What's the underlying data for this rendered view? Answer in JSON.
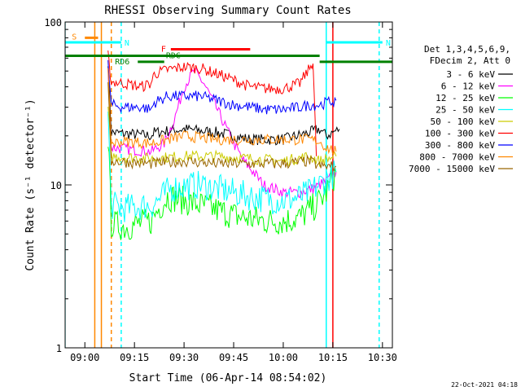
{
  "chart_data": {
    "type": "line",
    "title": "RHESSI Observing Summary Count Rates",
    "xlabel": "Start Time (06-Apr-14 08:54:02)",
    "ylabel": "Count Rate (s⁻¹ detector⁻¹)",
    "yscale": "log",
    "ylim": [
      1,
      100
    ],
    "xlim": [
      "08:54:02",
      "10:33:00"
    ],
    "x_ticks": [
      "09:00",
      "09:15",
      "09:30",
      "09:45",
      "10:00",
      "10:15",
      "10:30"
    ],
    "y_ticks": [
      "1",
      "10",
      "100"
    ],
    "grid": false,
    "legend_position": "right",
    "legend_header": [
      "Det 1,3,4,5,6,9,",
      "FDecim 2, Att 0"
    ],
    "series": [
      {
        "name": "3 - 6 keV",
        "color": "#000000",
        "x": [
          "09:07",
          "09:08",
          "09:20",
          "09:21",
          "09:30",
          "09:40",
          "09:50",
          "10:00",
          "10:08",
          "10:11",
          "10:13",
          "10:15",
          "10:17"
        ],
        "values": [
          58,
          21,
          20,
          21,
          22,
          21,
          19,
          19,
          21,
          22,
          20,
          21,
          22
        ]
      },
      {
        "name": "6 - 12 keV",
        "color": "#ff00ff",
        "x": [
          "09:07",
          "09:08",
          "09:20",
          "09:24",
          "09:27",
          "09:30",
          "09:33",
          "09:36",
          "09:39",
          "09:42",
          "09:45",
          "09:48",
          "09:51",
          "09:54",
          "09:57",
          "10:00",
          "10:05",
          "10:09",
          "10:13",
          "10:16"
        ],
        "values": [
          50,
          17,
          16,
          18,
          25,
          40,
          50,
          42,
          32,
          24,
          18,
          14,
          12,
          10,
          9.5,
          9,
          9,
          9.5,
          10.5,
          12
        ]
      },
      {
        "name": "12 - 25 keV",
        "color": "#00ff00",
        "x": [
          "09:07",
          "09:08",
          "09:12",
          "09:20",
          "09:22",
          "09:25",
          "09:30",
          "09:35",
          "09:40",
          "09:45",
          "09:50",
          "09:55",
          "10:00",
          "10:05",
          "10:10",
          "10:13",
          "10:16"
        ],
        "values": [
          20,
          5.8,
          5.5,
          6,
          7,
          8.5,
          8,
          7.5,
          7,
          6.5,
          6.2,
          6,
          6,
          6.3,
          7.5,
          9,
          12
        ]
      },
      {
        "name": "25 - 50 keV",
        "color": "#00ffff",
        "x": [
          "09:07",
          "09:08",
          "09:12",
          "09:20",
          "09:22",
          "09:26",
          "09:30",
          "09:35",
          "09:40",
          "09:45",
          "09:50",
          "09:55",
          "10:00",
          "10:05",
          "10:08",
          "10:12",
          "10:16"
        ],
        "values": [
          28,
          7.5,
          7.2,
          7.5,
          8,
          9.5,
          9.8,
          10,
          9.5,
          9,
          8.5,
          8.2,
          8,
          8.4,
          9,
          10.5,
          12
        ]
      },
      {
        "name": "50 - 100 keV",
        "color": "#cccc00",
        "x": [
          "09:07",
          "09:08",
          "09:20",
          "09:30",
          "09:40",
          "09:50",
          "10:00",
          "10:08",
          "10:11",
          "10:16"
        ],
        "values": [
          30,
          15,
          14.5,
          15,
          15,
          14.5,
          14,
          15,
          14,
          15
        ]
      },
      {
        "name": "100 - 300 keV",
        "color": "#ff0000",
        "x": [
          "09:07",
          "09:08",
          "09:12",
          "09:17",
          "09:20",
          "09:21",
          "09:25",
          "09:30",
          "09:35",
          "09:40",
          "09:45",
          "09:50",
          "09:55",
          "10:00",
          "10:05",
          "10:08",
          "10:09",
          "10:10"
        ],
        "values": [
          62,
          43,
          42,
          40,
          42,
          48,
          51,
          53,
          52,
          48,
          44,
          40,
          39,
          39,
          42,
          52,
          58,
          15
        ]
      },
      {
        "name": "300 - 800 keV",
        "color": "#0000ff",
        "x": [
          "09:07",
          "09:08",
          "09:12",
          "09:17",
          "09:20",
          "09:21",
          "09:25",
          "09:30",
          "09:35",
          "09:40",
          "09:45",
          "09:50",
          "09:55",
          "10:00",
          "10:05",
          "10:08",
          "10:11",
          "10:13",
          "10:16"
        ],
        "values": [
          55,
          31,
          30,
          30,
          29,
          32,
          35,
          35,
          35,
          33,
          31,
          30,
          29,
          29,
          30,
          31,
          31,
          32,
          33
        ]
      },
      {
        "name": "800 - 7000 keV",
        "color": "#ff8800",
        "x": [
          "09:07",
          "09:08",
          "09:12",
          "09:20",
          "09:25",
          "09:30",
          "09:35",
          "09:40",
          "09:50",
          "10:00",
          "10:08",
          "10:11",
          "10:13",
          "10:16"
        ],
        "values": [
          48,
          18,
          18.5,
          18,
          19,
          20,
          19.5,
          19,
          19,
          19,
          19,
          18.5,
          17,
          16
        ]
      },
      {
        "name": "7000 - 15000 keV",
        "color": "#996600",
        "x": [
          "09:07",
          "09:08",
          "09:20",
          "09:30",
          "09:40",
          "09:50",
          "10:00",
          "10:08",
          "10:11",
          "10:16"
        ],
        "values": [
          40,
          14,
          13.5,
          14,
          13.5,
          13.5,
          13.5,
          14,
          13,
          13
        ]
      }
    ],
    "flag_bars": [
      {
        "label": "S",
        "color": "#ff8800",
        "start": "09:00",
        "end": "09:04",
        "level": 80
      },
      {
        "label": "N",
        "color": "#00ffff",
        "start": "08:54",
        "end": "09:11",
        "level": 75
      },
      {
        "label": "N",
        "color": "#00ffff",
        "start": "10:13",
        "end": "10:30",
        "level": 75
      },
      {
        "label": "F",
        "color": "#ff0000",
        "start": "09:26",
        "end": "09:50",
        "level": 68
      },
      {
        "label": "RDC",
        "color": "#008000",
        "start": "08:54",
        "end": "10:11",
        "level": 62
      },
      {
        "label": "",
        "color": "#008000",
        "start": "10:11",
        "end": "10:33",
        "level": 57
      },
      {
        "label": "RD6",
        "color": "#008000",
        "start": "09:16",
        "end": "09:24",
        "level": 57
      }
    ],
    "markers": [
      {
        "time": "09:03",
        "color": "#ff8800",
        "style": "solid"
      },
      {
        "time": "09:05",
        "color": "#ff8800",
        "style": "solid"
      },
      {
        "time": "09:08",
        "color": "#ff8800",
        "style": "dashed"
      },
      {
        "time": "08:54",
        "color": "#00ffff",
        "style": "solid"
      },
      {
        "time": "09:11",
        "color": "#00ffff",
        "style": "dashed"
      },
      {
        "time": "10:13",
        "color": "#00ffff",
        "style": "solid"
      },
      {
        "time": "10:29",
        "color": "#00ffff",
        "style": "dashed"
      },
      {
        "time": "10:15",
        "color": "#ff0000",
        "style": "solid"
      }
    ],
    "footer_timestamp": "22-Oct-2021 04:18"
  }
}
